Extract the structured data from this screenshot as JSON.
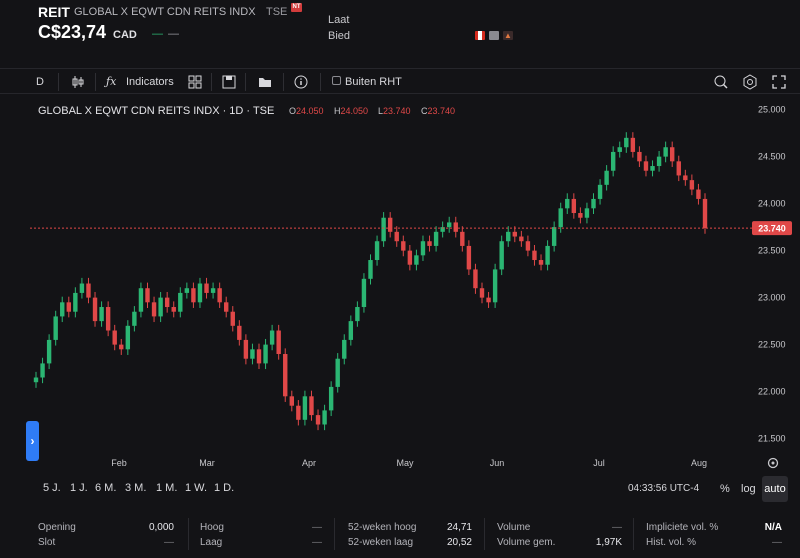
{
  "header": {
    "ticker": "REIT",
    "name": "GLOBAL X EQWT CDN REITS INDX",
    "exchange": "TSE",
    "badge": "NT",
    "price": "C$23,74",
    "currency": "CAD",
    "change": "—",
    "change_pct": "—",
    "ask_label": "Laat",
    "bid_label": "Bied"
  },
  "toolbar": {
    "interval": "D",
    "indicators_label": "Indicators",
    "outside_rth_label": "Buiten RHT"
  },
  "chart_label": {
    "title": "GLOBAL X EQWT CDN REITS INDX · 1D · TSE",
    "o_key": "O",
    "o_val": "24.050",
    "h_key": "H",
    "h_val": "24.050",
    "l_key": "L",
    "l_val": "23.740",
    "c_key": "C",
    "c_val": "23.740"
  },
  "chart_data": {
    "type": "candlestick",
    "title": "GLOBAL X EQWT CDN REITS INDX · 1D · TSE",
    "x_tick_labels": [
      "Feb",
      "Mar",
      "Apr",
      "May",
      "Jun",
      "Jul",
      "Aug"
    ],
    "y_tick_labels": [
      "25.000",
      "24.500",
      "24.000",
      "23.500",
      "23.000",
      "22.500",
      "22.000",
      "21.500"
    ],
    "ylim": [
      21.4,
      25.06
    ],
    "last_price_label": "23.740",
    "colors": {
      "up": "#2bb673",
      "down": "#e04848",
      "last_line": "#e04848"
    },
    "closes": [
      22.15,
      22.3,
      22.55,
      22.8,
      22.95,
      22.85,
      23.05,
      23.15,
      23.0,
      22.75,
      22.9,
      22.65,
      22.5,
      22.45,
      22.7,
      22.85,
      23.1,
      22.95,
      22.8,
      23.0,
      22.9,
      22.85,
      23.05,
      23.1,
      22.95,
      23.15,
      23.05,
      23.1,
      22.95,
      22.85,
      22.7,
      22.55,
      22.35,
      22.45,
      22.3,
      22.5,
      22.65,
      22.4,
      21.95,
      21.85,
      21.7,
      21.95,
      21.75,
      21.65,
      21.8,
      22.05,
      22.35,
      22.55,
      22.75,
      22.9,
      23.2,
      23.4,
      23.6,
      23.85,
      23.7,
      23.6,
      23.5,
      23.35,
      23.45,
      23.6,
      23.55,
      23.7,
      23.75,
      23.8,
      23.7,
      23.55,
      23.3,
      23.1,
      23.0,
      22.95,
      23.3,
      23.6,
      23.7,
      23.65,
      23.6,
      23.5,
      23.4,
      23.35,
      23.55,
      23.75,
      23.95,
      24.05,
      23.9,
      23.85,
      23.95,
      24.05,
      24.2,
      24.35,
      24.55,
      24.6,
      24.7,
      24.55,
      24.45,
      24.35,
      24.4,
      24.5,
      24.6,
      24.45,
      24.3,
      24.25,
      24.15,
      24.05,
      23.74
    ]
  },
  "ranges": [
    "5 J.",
    "1 J.",
    "6 M.",
    "3 M.",
    "1 M.",
    "1 W.",
    "1 D."
  ],
  "time_label": "04:33:56 UTC-4",
  "pct_label": "%",
  "log_label": "log",
  "auto_label": "auto",
  "stats": {
    "opening_label": "Opening",
    "opening_value": "0,000",
    "close_label": "Slot",
    "close_value": "—",
    "high_label": "Hoog",
    "high_value": "—",
    "low_label": "Laag",
    "low_value": "—",
    "wk52_high_label": "52-weken hoog",
    "wk52_high_value": "24,71",
    "wk52_low_label": "52-weken laag",
    "wk52_low_value": "20,52",
    "volume_label": "Volume",
    "volume_value": "—",
    "avg_volume_label": "Volume gem.",
    "avg_volume_value": "1,97K",
    "implied_vol_label": "Impliciete vol. %",
    "implied_vol_value": "N/A",
    "hist_vol_label": "Hist. vol. %",
    "hist_vol_value": "—"
  },
  "colors": {
    "background": "#131316",
    "accent": "#2f7cf6",
    "up": "#2bb673",
    "down": "#e04848"
  }
}
